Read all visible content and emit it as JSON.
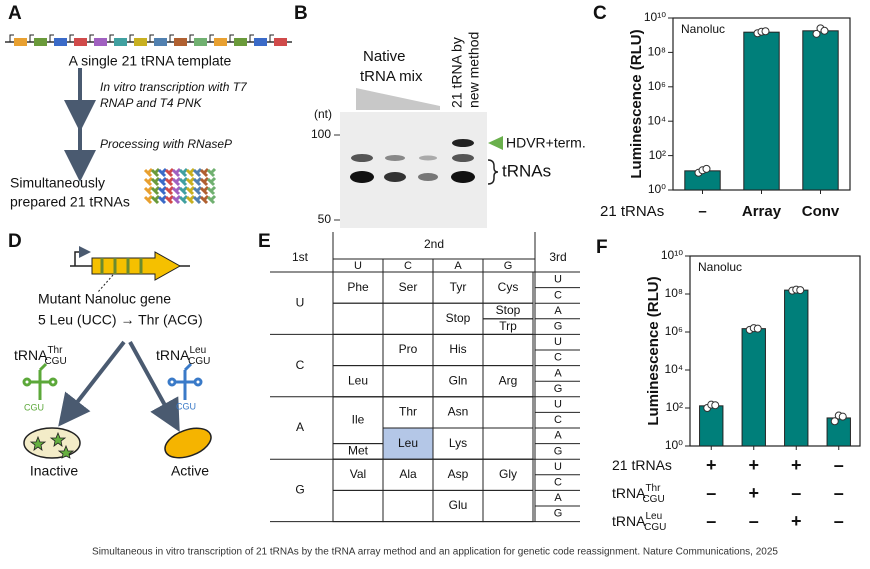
{
  "panel_labels": [
    "A",
    "B",
    "C",
    "D",
    "E",
    "F"
  ],
  "panel_a": {
    "template": "A single 21 tRNA template",
    "step1": [
      "In vitro transcription with T7",
      "RNAP and T4 PNK"
    ],
    "step2": "Processing with RNaseP",
    "product": [
      "Simultaneously",
      "prepared 21 tRNAs"
    ]
  },
  "panel_b": {
    "native": [
      "Native",
      "tRNA mix"
    ],
    "new": [
      "21 tRNA by",
      "new method"
    ],
    "unit": "(nt)",
    "markers": [
      "100",
      "50"
    ],
    "hdvr": "HDVR+term.",
    "trnas": "tRNAs"
  },
  "panel_d": {
    "gene": "Mutant Nanoluc gene",
    "mutation": "5 Leu (UCC) → Thr (ACG)",
    "trna_thr": {
      "base": "tRNA",
      "sup": "Thr",
      "sub": "CGU"
    },
    "trna_leu": {
      "base": "tRNA",
      "sup": "Leu",
      "sub": "CGU"
    },
    "anticodon": "CGU",
    "inactive": "Inactive",
    "active": "Active"
  },
  "panel_e": {
    "first": "1st",
    "second": "2nd",
    "third": "3rd",
    "bases": [
      "U",
      "C",
      "A",
      "G"
    ],
    "cells": [
      "Phe",
      "Ser",
      "Tyr",
      "Cys",
      "Stop",
      "Stop",
      "Trp",
      "Pro",
      "His",
      "Leu",
      "Gln",
      "Arg",
      "Ile",
      "Thr",
      "Asn",
      "Met",
      "Leu",
      "Lys",
      "Val",
      "Ala",
      "Asp",
      "Gly",
      "Glu"
    ]
  },
  "chart_data": [
    {
      "type": "bar",
      "annotation": "Nanoluc",
      "ylabel": "Luminescence (RLU)",
      "xlabel": "21 tRNAs",
      "categories": [
        "–",
        "Array",
        "Conv"
      ],
      "values": [
        13,
        1500000000,
        1800000000
      ],
      "replicates": [
        [
          10,
          14,
          17
        ],
        [
          1300000000,
          1600000000,
          1700000000
        ],
        [
          1200000000,
          2500000000,
          1800000000
        ]
      ],
      "color": "#007f7a",
      "log_y": true,
      "ylim": [
        1,
        10000000000
      ],
      "yticks": [
        {
          "value": 1,
          "label": "10⁰"
        },
        {
          "value": 100,
          "label": "10²"
        },
        {
          "value": 10000,
          "label": "10⁴"
        },
        {
          "value": 1000000,
          "label": "10⁶"
        },
        {
          "value": 100000000,
          "label": "10⁸"
        },
        {
          "value": 10000000000,
          "label": "10¹⁰"
        }
      ]
    },
    {
      "type": "bar",
      "annotation": "Nanoluc",
      "ylabel": "Luminescence (RLU)",
      "categories": [
        null,
        null,
        null,
        null
      ],
      "values": [
        130,
        1500000,
        160000000,
        30
      ],
      "replicates": [
        [
          100,
          150,
          140
        ],
        [
          1300000,
          1600000,
          1500000
        ],
        [
          150000000,
          170000000,
          160000000
        ],
        [
          20,
          40,
          35
        ]
      ],
      "conditions": [
        {
          "name": {
            "base": "21 tRNAs"
          },
          "marks": [
            "+",
            "+",
            "+",
            "–"
          ]
        },
        {
          "name": {
            "base": "tRNA",
            "sup": "Thr",
            "sub": "CGU"
          },
          "marks": [
            "–",
            "+",
            "–",
            "–"
          ]
        },
        {
          "name": {
            "base": "tRNA",
            "sup": "Leu",
            "sub": "CGU"
          },
          "marks": [
            "–",
            "–",
            "+",
            "–"
          ]
        }
      ],
      "color": "#007f7a",
      "log_y": true,
      "ylim": [
        1,
        10000000000
      ],
      "yticks": [
        {
          "value": 1,
          "label": "10⁰"
        },
        {
          "value": 100,
          "label": "10²"
        },
        {
          "value": 10000,
          "label": "10⁴"
        },
        {
          "value": 1000000,
          "label": "10⁶"
        },
        {
          "value": 100000000,
          "label": "10⁸"
        },
        {
          "value": 10000000000,
          "label": "10¹⁰"
        }
      ]
    }
  ],
  "caption": "Simultaneous in vitro transcription of 21 tRNAs by the tRNA array method and an application for genetic code reassignment. Nature Communications, 2025"
}
